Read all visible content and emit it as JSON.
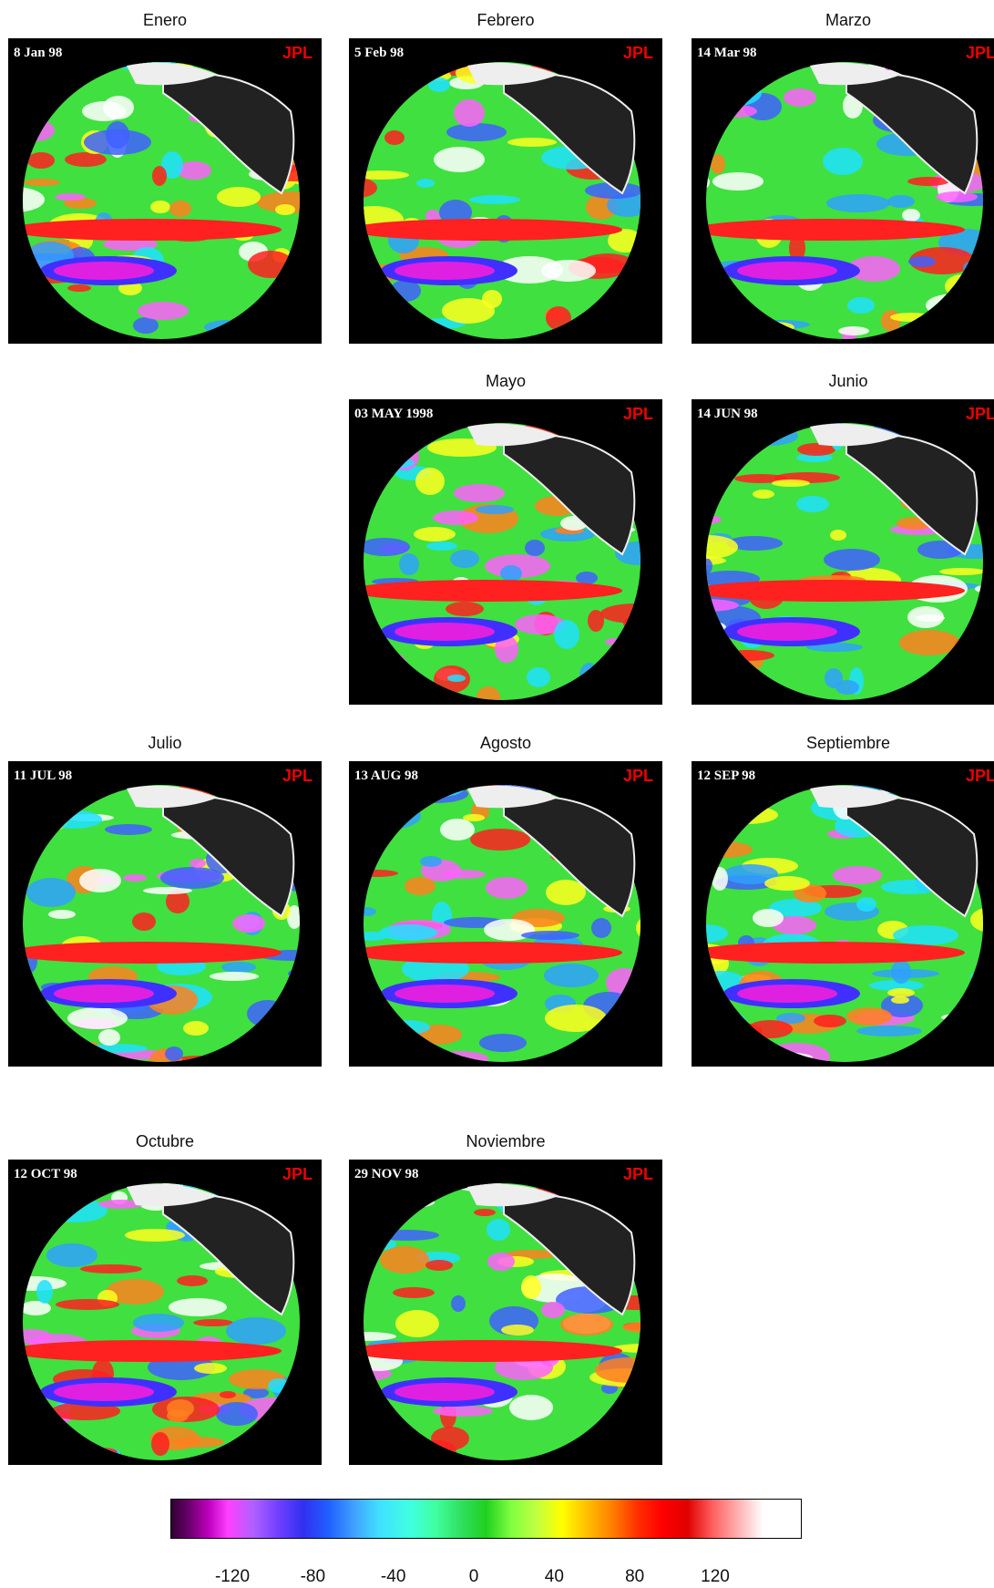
{
  "panels": [
    {
      "month": "Enero",
      "stamp": "8 Jan 98",
      "logo": "JPL"
    },
    {
      "month": "Febrero",
      "stamp": "5 Feb 98",
      "logo": "JPL"
    },
    {
      "month": "Marzo",
      "stamp": "14 Mar 98",
      "logo": "JPL"
    },
    {
      "month": "Mayo",
      "stamp": "03 MAY 1998",
      "logo": "JPL"
    },
    {
      "month": "Junio",
      "stamp": "14 JUN 98",
      "logo": "JPL"
    },
    {
      "month": "Julio",
      "stamp": "11 JUL 98",
      "logo": "JPL"
    },
    {
      "month": "Agosto",
      "stamp": "13 AUG 98",
      "logo": "JPL"
    },
    {
      "month": "Septiembre",
      "stamp": "12 SEP 98",
      "logo": "JPL"
    },
    {
      "month": "Octubre",
      "stamp": "12 OCT 98",
      "logo": "JPL"
    },
    {
      "month": "Noviembre",
      "stamp": "29 NOV 98",
      "logo": "JPL"
    }
  ],
  "colorbar": {
    "ticks": [
      -120,
      -80,
      -40,
      0,
      40,
      80,
      120
    ]
  }
}
